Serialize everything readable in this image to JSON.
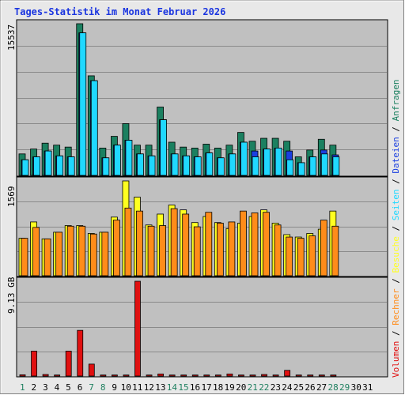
{
  "title": "Tages-Statistik im Monat Februar 2026",
  "days": [
    "1",
    "2",
    "3",
    "4",
    "5",
    "6",
    "7",
    "8",
    "9",
    "10",
    "11",
    "12",
    "13",
    "14",
    "15",
    "16",
    "17",
    "18",
    "19",
    "20",
    "21",
    "22",
    "23",
    "24",
    "25",
    "26",
    "27",
    "28",
    "29",
    "30",
    "31"
  ],
  "weekend_days": [
    1,
    7,
    8,
    14,
    15,
    21,
    22,
    28,
    29
  ],
  "colors": {
    "anfragen": "#1b8060",
    "dateien": "#1b3fe0",
    "seiten": "#20d8ff",
    "besuche": "#ffff20",
    "rechner": "#ff8c1a",
    "volumen": "#e01010",
    "title": "#1a35e0",
    "weekday_label": "#000000",
    "weekend_label": "#208060",
    "plot_bg": "#c0c0c0",
    "frame": "#f4f4f4"
  },
  "legend": [
    {
      "text": "Volumen",
      "color": "#e01010"
    },
    {
      "text": " / ",
      "color": "#000000"
    },
    {
      "text": "Rechner",
      "color": "#ff8c1a"
    },
    {
      "text": " / ",
      "color": "#000000"
    },
    {
      "text": "Besuche",
      "color": "#ffff20"
    },
    {
      "text": " / ",
      "color": "#000000"
    },
    {
      "text": "Seiten",
      "color": "#20d8ff"
    },
    {
      "text": " / ",
      "color": "#000000"
    },
    {
      "text": "Dateien",
      "color": "#1b3fe0"
    },
    {
      "text": " / ",
      "color": "#000000"
    },
    {
      "text": "Anfragen",
      "color": "#1b8060"
    }
  ],
  "chart_data": [
    {
      "type": "bar",
      "panel": "top",
      "ylabel": "15537",
      "ylim": [
        0,
        15537
      ],
      "categories": [
        "1",
        "2",
        "3",
        "4",
        "5",
        "6",
        "7",
        "8",
        "9",
        "10",
        "11",
        "12",
        "13",
        "14",
        "15",
        "16",
        "17",
        "18",
        "19",
        "20",
        "21",
        "22",
        "23",
        "24",
        "25",
        "26",
        "27",
        "28",
        "29",
        "30",
        "31"
      ],
      "series": [
        {
          "name": "Anfragen",
          "values": [
            2200,
            2700,
            3300,
            3100,
            2900,
            15537,
            10200,
            2800,
            4000,
            5300,
            3100,
            3100,
            7000,
            3400,
            2900,
            2800,
            3200,
            2800,
            3100,
            4400,
            3500,
            3800,
            3800,
            3500,
            1900,
            2600,
            3700,
            3100,
            0,
            0,
            0
          ]
        },
        {
          "name": "Dateien",
          "values": [
            1600,
            1900,
            2500,
            2000,
            1900,
            14600,
            9700,
            1800,
            3100,
            3600,
            2200,
            2000,
            5700,
            2200,
            2000,
            1900,
            2300,
            1800,
            2200,
            3400,
            2500,
            2700,
            2800,
            2500,
            1300,
            1900,
            2600,
            2100,
            0,
            0,
            0
          ]
        },
        {
          "name": "Seiten",
          "values": [
            1600,
            1900,
            2500,
            2000,
            1900,
            14600,
            9700,
            1800,
            3100,
            3600,
            2200,
            2000,
            5700,
            2200,
            2000,
            1900,
            2300,
            1800,
            2200,
            3400,
            1900,
            2700,
            2800,
            1600,
            1300,
            1900,
            2200,
            1900,
            0,
            0,
            0
          ]
        }
      ]
    },
    {
      "type": "bar",
      "panel": "middle",
      "ylabel": "1569",
      "ylim": [
        0,
        1569
      ],
      "categories": [
        "1",
        "2",
        "3",
        "4",
        "5",
        "6",
        "7",
        "8",
        "9",
        "10",
        "11",
        "12",
        "13",
        "14",
        "15",
        "16",
        "17",
        "18",
        "19",
        "20",
        "21",
        "22",
        "23",
        "24",
        "25",
        "26",
        "27",
        "28",
        "29",
        "30",
        "31"
      ],
      "series": [
        {
          "name": "Besuche",
          "values": [
            620,
            890,
            610,
            720,
            830,
            830,
            700,
            720,
            970,
            1569,
            1300,
            840,
            1020,
            1170,
            1090,
            880,
            980,
            880,
            780,
            870,
            980,
            1090,
            870,
            680,
            640,
            700,
            770,
            1070,
            0,
            0,
            0
          ]
        },
        {
          "name": "Rechner",
          "values": [
            620,
            800,
            610,
            720,
            820,
            820,
            690,
            720,
            920,
            1120,
            1070,
            820,
            830,
            1110,
            1020,
            810,
            1050,
            870,
            890,
            1070,
            1040,
            1050,
            840,
            640,
            620,
            660,
            920,
            820,
            0,
            0,
            0
          ]
        }
      ]
    },
    {
      "type": "bar",
      "panel": "bottom",
      "ylabel": "9.13 GB",
      "ylim": [
        0,
        9.13
      ],
      "unit": "GB",
      "categories": [
        "1",
        "2",
        "3",
        "4",
        "5",
        "6",
        "7",
        "8",
        "9",
        "10",
        "11",
        "12",
        "13",
        "14",
        "15",
        "16",
        "17",
        "18",
        "19",
        "20",
        "21",
        "22",
        "23",
        "24",
        "25",
        "26",
        "27",
        "28",
        "29",
        "30",
        "31"
      ],
      "series": [
        {
          "name": "Volumen",
          "values": [
            0.12,
            2.4,
            0.15,
            0.1,
            2.4,
            4.4,
            1.15,
            0.1,
            0.1,
            0.1,
            9.13,
            0.1,
            0.2,
            0.1,
            0.1,
            0.1,
            0.1,
            0.1,
            0.2,
            0.1,
            0.1,
            0.15,
            0.1,
            0.55,
            0.1,
            0.1,
            0.1,
            0.1,
            0,
            0,
            0
          ]
        }
      ]
    }
  ]
}
